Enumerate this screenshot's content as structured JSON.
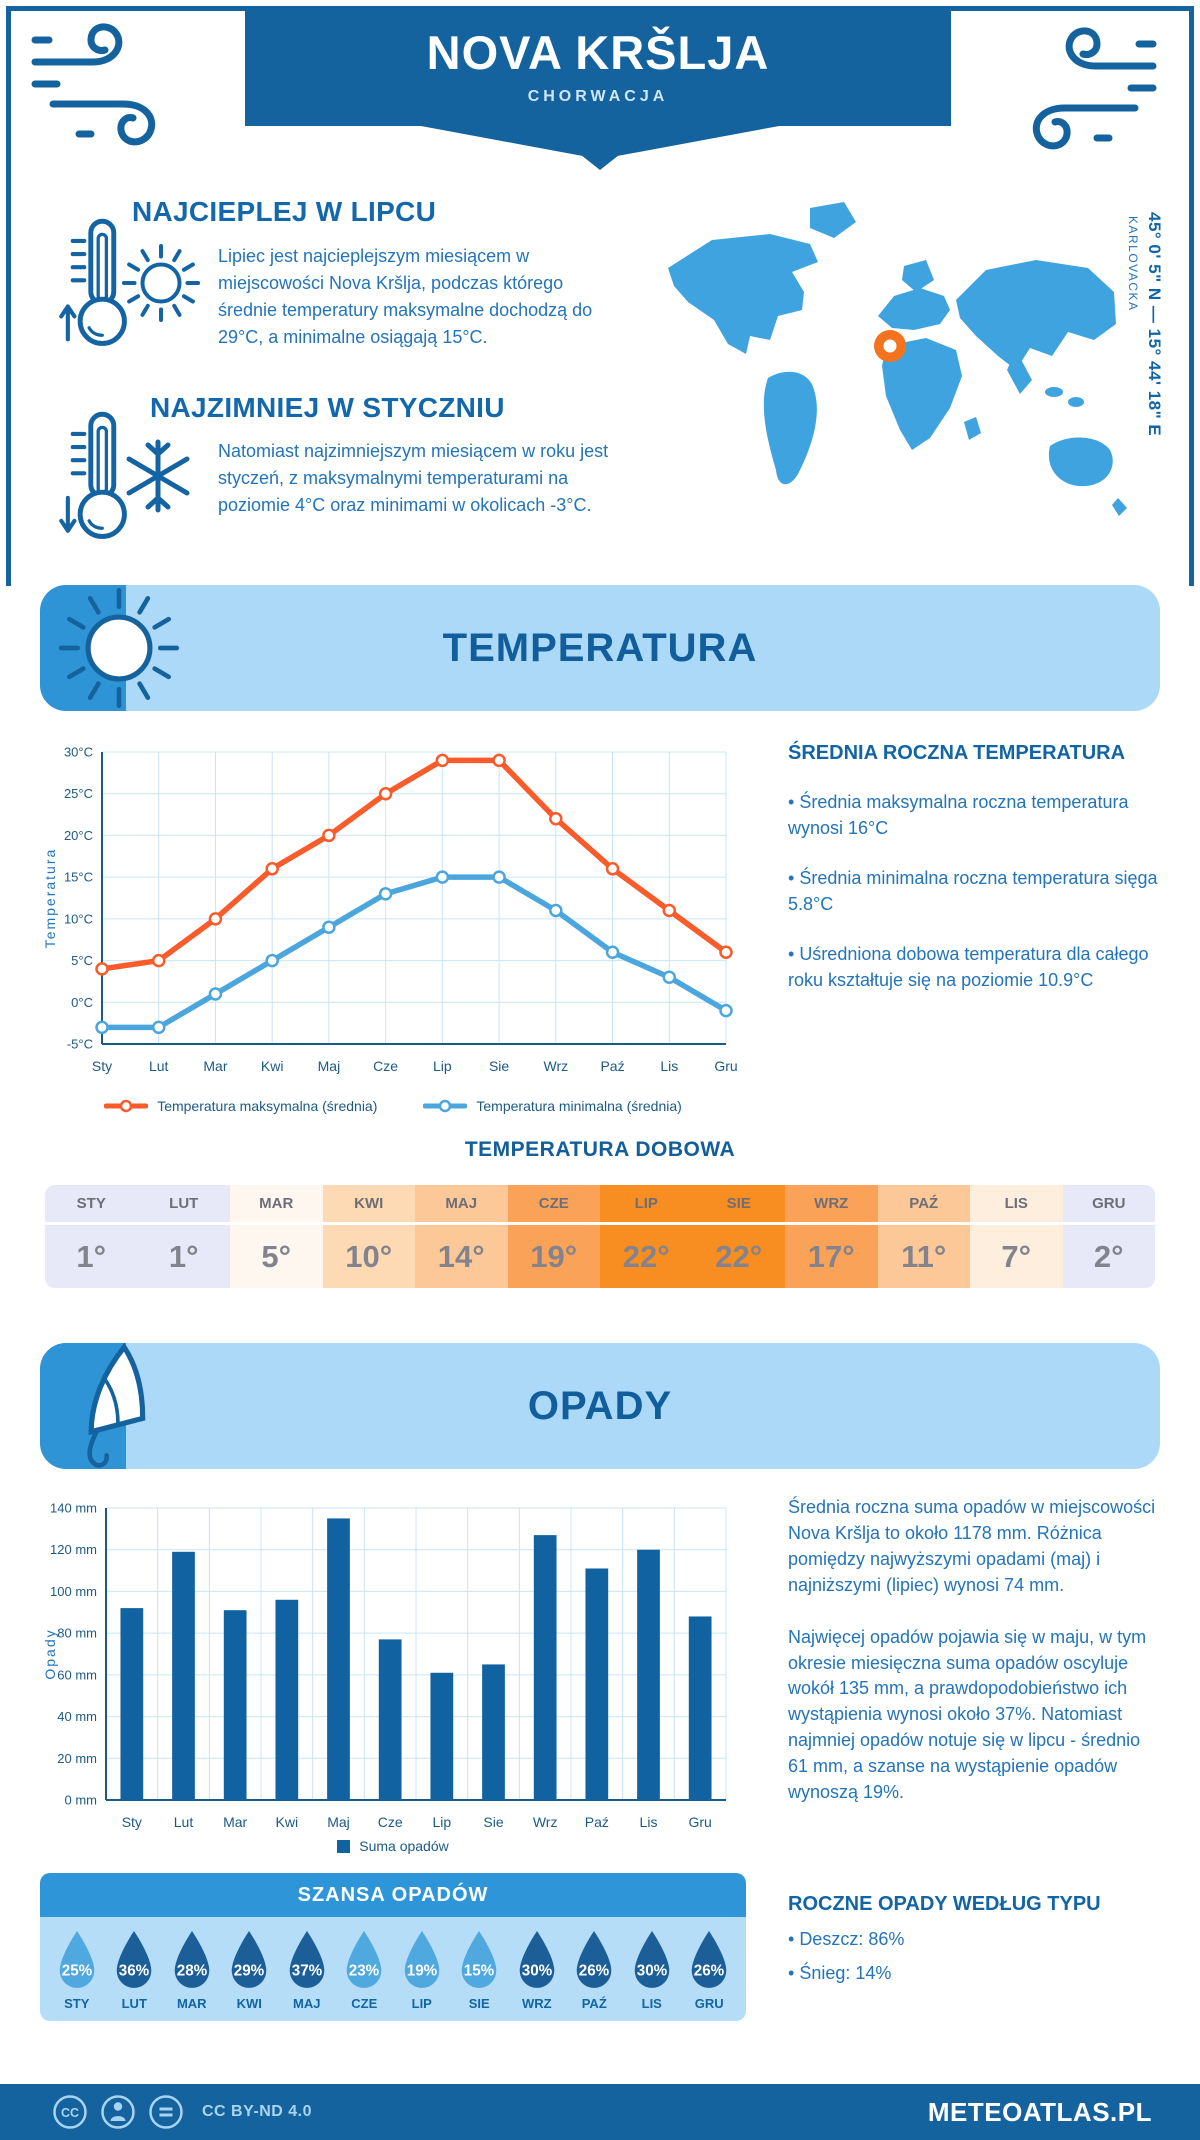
{
  "header": {
    "title": "NOVA KRŠLJA",
    "subtitle": "CHORWACJA"
  },
  "intro": {
    "warmest": {
      "heading": "NAJCIEPLEJ W LIPCU",
      "text": "Lipiec jest najcieplejszym miesiącem w miejscowości Nova Kršlja, podczas którego średnie temperatury maksymalne dochodzą do 29°C, a minimalne osiągają 15°C."
    },
    "coldest": {
      "heading": "NAJZIMNIEJ W STYCZNIU",
      "text": "Natomiast najzimniejszym miesiącem w roku jest styczeń, z maksymalnymi temperaturami na poziomie 4°C oraz minimami w okolicach -3°C."
    },
    "map": {
      "coordinates": "45° 0' 5\" N — 15° 44' 18\" E",
      "region": "KARLOVACKA"
    }
  },
  "temperature": {
    "section_title": "TEMPERATURA",
    "annual": {
      "heading": "ŚREDNIA ROCZNA TEMPERATURA",
      "bullets": [
        "Średnia maksymalna roczna temperatura wynosi 16°C",
        "Średnia minimalna roczna temperatura sięga 5.8°C",
        "Uśredniona dobowa temperatura dla całego roku kształtuje się na poziomie 10.9°C"
      ]
    },
    "daily": {
      "heading": "TEMPERATURA DOBOWA",
      "months": [
        "STY",
        "LUT",
        "MAR",
        "KWI",
        "MAJ",
        "CZE",
        "LIP",
        "SIE",
        "WRZ",
        "PAŹ",
        "LIS",
        "GRU"
      ],
      "values": [
        "1°",
        "1°",
        "5°",
        "10°",
        "14°",
        "19°",
        "22°",
        "22°",
        "17°",
        "11°",
        "7°",
        "2°"
      ],
      "cell_colors": [
        "#e7e8f8",
        "#e7e8f8",
        "#fdf7ef",
        "#fdd9b4",
        "#fcc897",
        "#faa258",
        "#f88d21",
        "#f88d21",
        "#faa258",
        "#fcc897",
        "#fdeedd",
        "#e7e8f8"
      ]
    }
  },
  "precipitation": {
    "section_title": "OPADY",
    "paragraph1": "Średnia roczna suma opadów w miejscowości Nova Kršlja to około 1178 mm. Różnica pomiędzy najwyższymi opadami (maj) i najniższymi (lipiec) wynosi 74 mm.",
    "paragraph2": "Najwięcej opadów pojawia się w maju, w tym okresie miesięczna suma opadów oscyluje wokół 135 mm, a prawdopodobieństwo ich wystąpienia wynosi około 37%. Natomiast najmniej opadów notuje się w lipcu - średnio 61 mm, a szanse na wystąpienie opadów wynoszą 19%.",
    "chance": {
      "heading": "SZANSA OPADÓW",
      "months": [
        "STY",
        "LUT",
        "MAR",
        "KWI",
        "MAJ",
        "CZE",
        "LIP",
        "SIE",
        "WRZ",
        "PAŹ",
        "LIS",
        "GRU"
      ],
      "values": [
        "25%",
        "36%",
        "28%",
        "29%",
        "37%",
        "23%",
        "19%",
        "15%",
        "30%",
        "26%",
        "30%",
        "26%"
      ],
      "light_drop": [
        true,
        false,
        false,
        false,
        false,
        true,
        true,
        true,
        false,
        false,
        false,
        false
      ]
    },
    "by_type": {
      "heading": "ROCZNE OPADY WEDŁUG TYPU",
      "bullets": [
        "Deszcz: 86%",
        "Śnieg: 14%"
      ]
    }
  },
  "footer": {
    "license": "CC BY-ND 4.0",
    "brand": "METEOATLAS.PL"
  },
  "colors": {
    "primary_dark": "#14639e",
    "heading_blue": "#1265a5",
    "body_blue": "#2374ba",
    "banner_light": "#abd9f7",
    "banner_accent": "#2e94d6",
    "map_blue": "#3fa3df",
    "marker_orange": "#f4731f",
    "grid_blue": "#c9e4f6",
    "axis_blue": "#1c5a86",
    "drop_light": "#4fa8de",
    "drop_dark": "#1c5e97"
  },
  "chart_data": [
    {
      "type": "line",
      "categories": [
        "Sty",
        "Lut",
        "Mar",
        "Kwi",
        "Maj",
        "Cze",
        "Lip",
        "Sie",
        "Wrz",
        "Paź",
        "Lis",
        "Gru"
      ],
      "series": [
        {
          "name": "Temperatura maksymalna (średnia)",
          "color": "#f95b2b",
          "values": [
            4,
            5,
            10,
            16,
            20,
            25,
            29,
            29,
            22,
            16,
            11,
            6
          ]
        },
        {
          "name": "Temperatura minimalna (średnia)",
          "color": "#4ba6dd",
          "values": [
            -3,
            -3,
            1,
            5,
            9,
            13,
            15,
            15,
            11,
            6,
            3,
            -1
          ]
        }
      ],
      "title": "",
      "xlabel": "",
      "ylabel": "Temperatura",
      "ylim": [
        -5,
        30
      ],
      "ytick_step": 5,
      "ytick_suffix": "°C",
      "grid": true,
      "legend_position": "bottom"
    },
    {
      "type": "bar",
      "categories": [
        "Sty",
        "Lut",
        "Mar",
        "Kwi",
        "Maj",
        "Cze",
        "Lip",
        "Sie",
        "Wrz",
        "Paź",
        "Lis",
        "Gru"
      ],
      "series": [
        {
          "name": "Suma opadów",
          "color": "#1162a0",
          "values": [
            92,
            119,
            91,
            96,
            135,
            77,
            61,
            65,
            127,
            111,
            120,
            88
          ]
        }
      ],
      "title": "",
      "xlabel": "",
      "ylabel": "Opady",
      "ylim": [
        0,
        140
      ],
      "ytick_step": 20,
      "ytick_suffix": " mm",
      "grid": true,
      "legend_position": "bottom"
    }
  ]
}
